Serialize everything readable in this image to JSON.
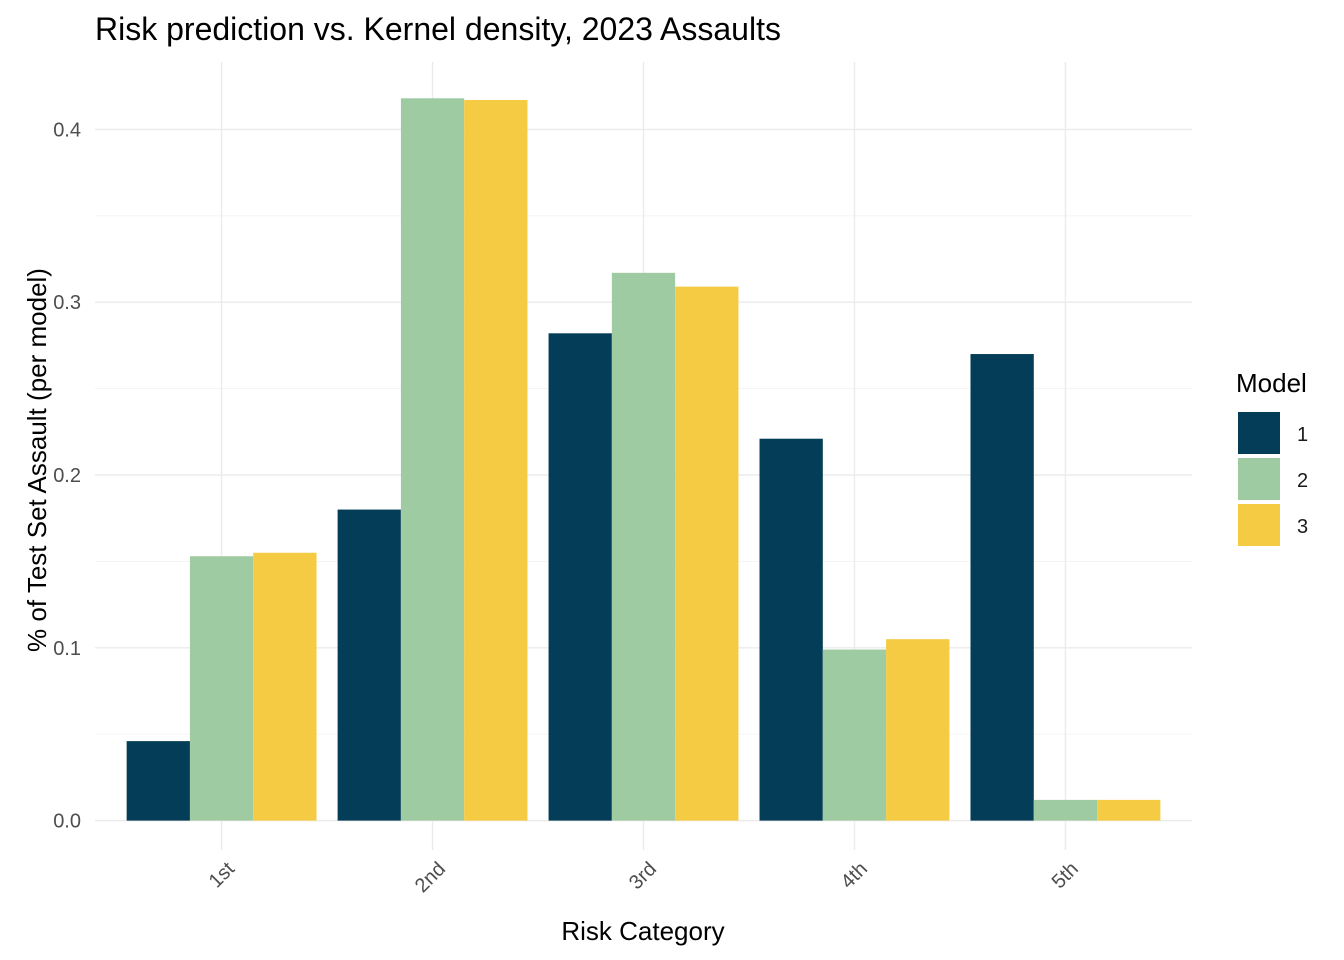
{
  "chart_data": {
    "type": "bar",
    "title": "Risk prediction vs. Kernel density, 2023 Assaults",
    "xlabel": "Risk Category",
    "ylabel": "% of Test Set Assault (per model)",
    "categories": [
      "1st",
      "2nd",
      "3rd",
      "4th",
      "5th"
    ],
    "series": [
      {
        "name": "1",
        "color": "#043d57",
        "values": [
          0.046,
          0.18,
          0.282,
          0.221,
          0.27
        ]
      },
      {
        "name": "2",
        "color": "#9fcba3",
        "values": [
          0.153,
          0.418,
          0.317,
          0.099,
          0.012
        ]
      },
      {
        "name": "3",
        "color": "#f4cb42",
        "values": [
          0.155,
          0.417,
          0.309,
          0.105,
          0.012
        ]
      }
    ],
    "ylim": [
      -0.017,
      0.439
    ],
    "yticks": [
      0.0,
      0.1,
      0.2,
      0.3,
      0.4
    ],
    "ytick_labels": [
      "0.0",
      "0.1",
      "0.2",
      "0.3",
      "0.4"
    ],
    "grid": true,
    "legend": {
      "title": "Model",
      "position": "right"
    }
  }
}
